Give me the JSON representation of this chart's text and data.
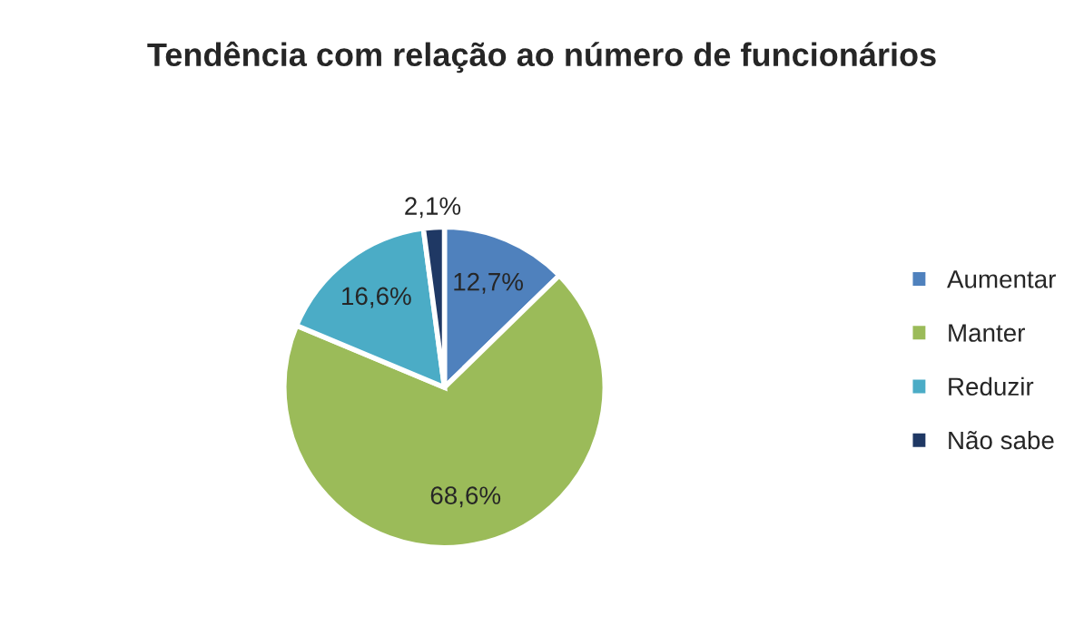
{
  "chart_data": {
    "type": "pie",
    "title": "Tendência com relação ao número de funcionários",
    "categories": [
      "Aumentar",
      "Manter",
      "Reduzir",
      "Não sabe"
    ],
    "values": [
      12.7,
      68.6,
      16.6,
      2.1
    ],
    "value_labels": [
      "12,7%",
      "68,6%",
      "16,6%",
      "2,1%"
    ],
    "colors": [
      "#4f81bd",
      "#9bbb59",
      "#4bacc6",
      "#1f3864"
    ],
    "legend": "right"
  }
}
